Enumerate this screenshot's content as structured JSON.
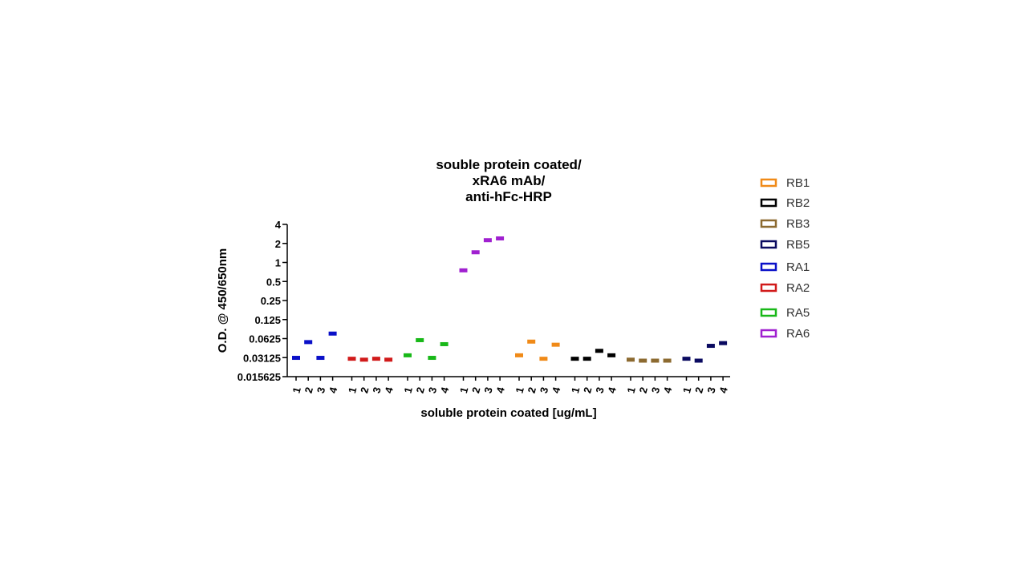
{
  "chart_data": {
    "type": "scatter",
    "title_lines": [
      "souble protein coated/",
      "xRA6 mAb/",
      "anti-hFc-HRP"
    ],
    "xlabel": "soluble protein coated [ug/mL]",
    "ylabel": "O.D. @ 450/650nm",
    "yscale": "log2",
    "ylim": [
      0.015625,
      4
    ],
    "yticks": [
      {
        "value": 4,
        "label": "4"
      },
      {
        "value": 2,
        "label": "2"
      },
      {
        "value": 1,
        "label": "1"
      },
      {
        "value": 0.5,
        "label": "0.5"
      },
      {
        "value": 0.25,
        "label": "0.25"
      },
      {
        "value": 0.125,
        "label": "0.125"
      },
      {
        "value": 0.0625,
        "label": "0.0625"
      },
      {
        "value": 0.03125,
        "label": "0.03125"
      },
      {
        "value": 0.015625,
        "label": "0.015625"
      }
    ],
    "categories": [
      "1",
      "2",
      "3",
      "4"
    ],
    "groups": [
      {
        "name": "RA1",
        "color": "#0a10c8",
        "values": [
          0.031,
          0.055,
          0.031,
          0.075
        ]
      },
      {
        "name": "RA2",
        "color": "#d11a1a",
        "values": [
          0.03,
          0.029,
          0.03,
          0.029
        ]
      },
      {
        "name": "RA5",
        "color": "#18b818",
        "values": [
          0.034,
          0.059,
          0.031,
          0.051
        ]
      },
      {
        "name": "RA6",
        "color": "#a020d0",
        "values": [
          0.75,
          1.45,
          2.25,
          2.4
        ]
      },
      {
        "name": "RB1",
        "color": "#f08a18",
        "values": [
          0.034,
          0.056,
          0.03,
          0.05
        ]
      },
      {
        "name": "RB2",
        "color": "#000000",
        "values": [
          0.03,
          0.03,
          0.04,
          0.034
        ]
      },
      {
        "name": "RB3",
        "color": "#8c6a30",
        "values": [
          0.029,
          0.028,
          0.028,
          0.028
        ]
      },
      {
        "name": "RB5",
        "color": "#0a0a60",
        "values": [
          0.03,
          0.028,
          0.048,
          0.053
        ]
      }
    ],
    "legend": {
      "position": "right",
      "entries": [
        {
          "name": "RB1",
          "color": "#f08a18"
        },
        {
          "name": "RB2",
          "color": "#000000"
        },
        {
          "name": "RB3",
          "color": "#8c6a30"
        },
        {
          "name": "RB5",
          "color": "#0a0a60"
        },
        {
          "name": "RA1",
          "color": "#0a10c8"
        },
        {
          "name": "RA2",
          "color": "#d11a1a"
        },
        {
          "name": "RA5",
          "color": "#18b818"
        },
        {
          "name": "RA6",
          "color": "#a020d0"
        }
      ]
    },
    "grid": false
  }
}
